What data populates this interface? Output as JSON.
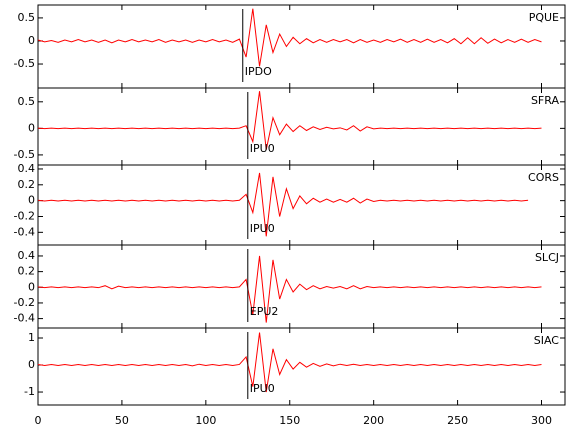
{
  "chart_data": [
    {
      "type": "line",
      "xlim": [
        0,
        314
      ],
      "xticks": [
        0,
        50,
        100,
        150,
        200,
        250,
        300
      ],
      "ylim": [
        -1.02,
        0.78
      ],
      "yticks": [
        -0.5,
        0.0,
        0.5
      ],
      "x": [
        0,
        4,
        8,
        12,
        16,
        20,
        24,
        28,
        32,
        36,
        40,
        44,
        48,
        52,
        56,
        60,
        64,
        68,
        72,
        76,
        80,
        84,
        88,
        92,
        96,
        100,
        104,
        108,
        112,
        116,
        120,
        124,
        128,
        132,
        136,
        140,
        144,
        148,
        152,
        156,
        160,
        164,
        168,
        172,
        176,
        180,
        184,
        188,
        192,
        196,
        200,
        204,
        208,
        212,
        216,
        220,
        224,
        228,
        232,
        236,
        240,
        244,
        248,
        252,
        256,
        260,
        264,
        268,
        272,
        276,
        280,
        284,
        288,
        292,
        296,
        300
      ],
      "series": [
        {
          "name": "PQUE",
          "color": "#ff0000",
          "values": [
            0.02,
            -0.02,
            0.01,
            -0.03,
            0.02,
            -0.02,
            0.03,
            -0.02,
            0.02,
            -0.03,
            0.02,
            -0.04,
            0.02,
            -0.02,
            0.03,
            -0.02,
            0.02,
            -0.02,
            0.03,
            -0.03,
            0.02,
            -0.02,
            0.02,
            -0.03,
            0.02,
            -0.02,
            0.03,
            -0.02,
            0.02,
            -0.03,
            0.04,
            -0.35,
            0.7,
            -0.55,
            0.35,
            -0.25,
            0.15,
            -0.12,
            0.08,
            -0.06,
            0.05,
            -0.04,
            0.03,
            -0.03,
            0.03,
            -0.02,
            0.03,
            -0.04,
            0.03,
            -0.03,
            0.02,
            -0.03,
            0.03,
            -0.02,
            0.04,
            -0.03,
            0.03,
            -0.03,
            0.04,
            -0.03,
            0.03,
            -0.04,
            0.05,
            -0.06,
            0.07,
            -0.06,
            0.07,
            -0.05,
            0.04,
            -0.04,
            0.03,
            -0.03,
            0.04,
            -0.03,
            0.03,
            -0.02
          ]
        }
      ],
      "pick": {
        "label": "IPDO",
        "x": 122
      }
    },
    {
      "type": "line",
      "xlim": [
        0,
        314
      ],
      "xticks": [
        0,
        50,
        100,
        150,
        200,
        250,
        300
      ],
      "ylim": [
        -0.69,
        0.76
      ],
      "yticks": [
        -0.5,
        0.0,
        0.5
      ],
      "x": [
        0,
        4,
        8,
        12,
        16,
        20,
        24,
        28,
        32,
        36,
        40,
        44,
        48,
        52,
        56,
        60,
        64,
        68,
        72,
        76,
        80,
        84,
        88,
        92,
        96,
        100,
        104,
        108,
        112,
        116,
        120,
        124,
        128,
        132,
        136,
        140,
        144,
        148,
        152,
        156,
        160,
        164,
        168,
        172,
        176,
        180,
        184,
        188,
        192,
        196,
        200,
        204,
        208,
        212,
        216,
        220,
        224,
        228,
        232,
        236,
        240,
        244,
        248,
        252,
        256,
        260,
        264,
        268,
        272,
        276,
        280,
        284,
        288,
        292,
        296,
        300
      ],
      "series": [
        {
          "name": "SFRA",
          "color": "#ff0000",
          "values": [
            0.005,
            -0.005,
            0.005,
            -0.005,
            0.005,
            -0.005,
            0.005,
            -0.005,
            0.005,
            -0.005,
            0.005,
            -0.005,
            0.005,
            -0.005,
            0.005,
            -0.005,
            0.005,
            -0.005,
            0.005,
            -0.005,
            0.005,
            -0.005,
            0.005,
            -0.005,
            0.005,
            -0.005,
            0.005,
            -0.005,
            0.005,
            -0.005,
            0.005,
            0.05,
            -0.25,
            0.7,
            -0.4,
            0.2,
            -0.12,
            0.08,
            -0.06,
            0.05,
            -0.04,
            0.03,
            -0.02,
            0.02,
            -0.01,
            0.01,
            -0.03,
            0.05,
            -0.05,
            0.03,
            -0.01,
            0.005,
            -0.005,
            0.005,
            -0.005,
            0.005,
            -0.005,
            0.005,
            -0.005,
            0.005,
            -0.005,
            0.005,
            -0.005,
            0.005,
            -0.005,
            0.005,
            -0.005,
            0.005,
            -0.005,
            0.005,
            -0.005,
            0.005,
            -0.005,
            0.005,
            -0.005,
            0.005
          ]
        }
      ],
      "pick": {
        "label": "IPU0",
        "x": 125
      }
    },
    {
      "type": "line",
      "xlim": [
        0,
        314
      ],
      "xticks": [
        0,
        50,
        100,
        150,
        200,
        250,
        300
      ],
      "ylim": [
        -0.56,
        0.45
      ],
      "yticks": [
        -0.4,
        -0.2,
        0.0,
        0.2,
        0.4
      ],
      "x": [
        0,
        4,
        8,
        12,
        16,
        20,
        24,
        28,
        32,
        36,
        40,
        44,
        48,
        52,
        56,
        60,
        64,
        68,
        72,
        76,
        80,
        84,
        88,
        92,
        96,
        100,
        104,
        108,
        112,
        116,
        120,
        124,
        128,
        132,
        136,
        140,
        144,
        148,
        152,
        156,
        160,
        164,
        168,
        172,
        176,
        180,
        184,
        188,
        192,
        196,
        200,
        204,
        208,
        212,
        216,
        220,
        224,
        228,
        232,
        236,
        240,
        244,
        248,
        252,
        256,
        260,
        264,
        268,
        272,
        276,
        280,
        284,
        288,
        292,
        296,
        300
      ],
      "series": [
        {
          "name": "CORS",
          "color": "#ff0000",
          "values": [
            0.005,
            -0.005,
            0.005,
            -0.005,
            0.005,
            -0.005,
            0.005,
            -0.005,
            0.005,
            -0.005,
            0.005,
            -0.005,
            0.005,
            -0.005,
            0.005,
            -0.005,
            0.005,
            -0.005,
            0.005,
            -0.005,
            0.005,
            -0.005,
            0.005,
            -0.005,
            0.005,
            -0.005,
            0.005,
            -0.005,
            0.005,
            -0.005,
            0.005,
            0.08,
            -0.15,
            0.35,
            -0.45,
            0.3,
            -0.2,
            0.15,
            -0.1,
            0.06,
            -0.04,
            0.03,
            -0.02,
            0.02,
            -0.02,
            0.015,
            -0.02,
            0.03,
            -0.03,
            0.02,
            -0.01,
            0.005,
            -0.005,
            0.005,
            -0.005,
            0.005,
            -0.005,
            0.005,
            -0.005,
            0.005,
            -0.005,
            0.005,
            -0.005,
            0.005,
            -0.005,
            0.005,
            -0.005,
            0.005,
            -0.005,
            0.005,
            -0.005,
            0.005,
            -0.005,
            0.005,
            null,
            null
          ]
        }
      ],
      "pick": {
        "label": "IPU0",
        "x": 125
      }
    },
    {
      "type": "line",
      "xlim": [
        0,
        314
      ],
      "xticks": [
        0,
        50,
        100,
        150,
        200,
        250,
        300
      ],
      "ylim": [
        -0.52,
        0.54
      ],
      "yticks": [
        -0.4,
        -0.2,
        0.0,
        0.2,
        0.4
      ],
      "x": [
        0,
        4,
        8,
        12,
        16,
        20,
        24,
        28,
        32,
        36,
        40,
        44,
        48,
        52,
        56,
        60,
        64,
        68,
        72,
        76,
        80,
        84,
        88,
        92,
        96,
        100,
        104,
        108,
        112,
        116,
        120,
        124,
        128,
        132,
        136,
        140,
        144,
        148,
        152,
        156,
        160,
        164,
        168,
        172,
        176,
        180,
        184,
        188,
        192,
        196,
        200,
        204,
        208,
        212,
        216,
        220,
        224,
        228,
        232,
        236,
        240,
        244,
        248,
        252,
        256,
        260,
        264,
        268,
        272,
        276,
        280,
        284,
        288,
        292,
        296,
        300
      ],
      "series": [
        {
          "name": "SLCJ",
          "color": "#ff0000",
          "values": [
            0.005,
            -0.005,
            0.005,
            -0.005,
            0.005,
            -0.005,
            0.005,
            -0.005,
            0.005,
            -0.005,
            0.02,
            -0.02,
            0.015,
            -0.005,
            0.005,
            -0.005,
            0.005,
            -0.005,
            0.005,
            -0.005,
            0.005,
            -0.005,
            0.005,
            -0.005,
            0.005,
            -0.005,
            0.005,
            -0.005,
            0.005,
            -0.005,
            0.005,
            0.1,
            -0.35,
            0.4,
            -0.45,
            0.35,
            -0.15,
            0.1,
            -0.06,
            0.04,
            -0.03,
            0.02,
            -0.02,
            0.01,
            -0.01,
            0.01,
            -0.02,
            0.02,
            -0.02,
            0.01,
            -0.005,
            0.005,
            -0.005,
            0.005,
            -0.005,
            0.005,
            -0.005,
            0.005,
            -0.005,
            0.005,
            -0.005,
            0.005,
            -0.005,
            0.005,
            -0.005,
            0.005,
            -0.005,
            0.005,
            -0.005,
            0.005,
            -0.005,
            0.005,
            -0.005,
            0.005,
            -0.005,
            0.005
          ]
        }
      ],
      "pick": {
        "label": "EPU2",
        "x": 125
      }
    },
    {
      "type": "line",
      "xlim": [
        0,
        314
      ],
      "xticks": [
        0,
        50,
        100,
        150,
        200,
        250,
        300
      ],
      "ylim": [
        -1.48,
        1.37
      ],
      "yticks": [
        -1,
        0,
        1
      ],
      "x": [
        0,
        4,
        8,
        12,
        16,
        20,
        24,
        28,
        32,
        36,
        40,
        44,
        48,
        52,
        56,
        60,
        64,
        68,
        72,
        76,
        80,
        84,
        88,
        92,
        96,
        100,
        104,
        108,
        112,
        116,
        120,
        124,
        128,
        132,
        136,
        140,
        144,
        148,
        152,
        156,
        160,
        164,
        168,
        172,
        176,
        180,
        184,
        188,
        192,
        196,
        200,
        204,
        208,
        212,
        216,
        220,
        224,
        228,
        232,
        236,
        240,
        244,
        248,
        252,
        256,
        260,
        264,
        268,
        272,
        276,
        280,
        284,
        288,
        292,
        296,
        300
      ],
      "series": [
        {
          "name": "SIAC",
          "color": "#ff0000",
          "values": [
            0.02,
            -0.02,
            0.02,
            -0.02,
            0.02,
            -0.02,
            0.02,
            -0.02,
            0.02,
            -0.02,
            0.02,
            -0.02,
            0.02,
            -0.02,
            0.02,
            -0.02,
            0.02,
            -0.02,
            0.02,
            -0.02,
            0.02,
            -0.02,
            0.02,
            -0.03,
            0.03,
            -0.02,
            0.02,
            -0.02,
            0.02,
            -0.02,
            0.02,
            0.3,
            -0.8,
            1.2,
            -1.0,
            0.6,
            -0.35,
            0.2,
            -0.15,
            0.1,
            -0.08,
            0.06,
            -0.05,
            0.04,
            -0.03,
            0.03,
            -0.02,
            0.03,
            -0.02,
            0.02,
            -0.02,
            0.02,
            -0.02,
            0.02,
            -0.02,
            0.02,
            -0.02,
            0.02,
            -0.02,
            0.02,
            -0.02,
            0.02,
            -0.02,
            0.02,
            -0.02,
            0.02,
            -0.02,
            0.02,
            -0.02,
            0.02,
            -0.02,
            0.02,
            -0.02,
            0.02,
            -0.02,
            0.02
          ]
        }
      ],
      "pick": {
        "label": "IPU0",
        "x": 125
      }
    }
  ]
}
